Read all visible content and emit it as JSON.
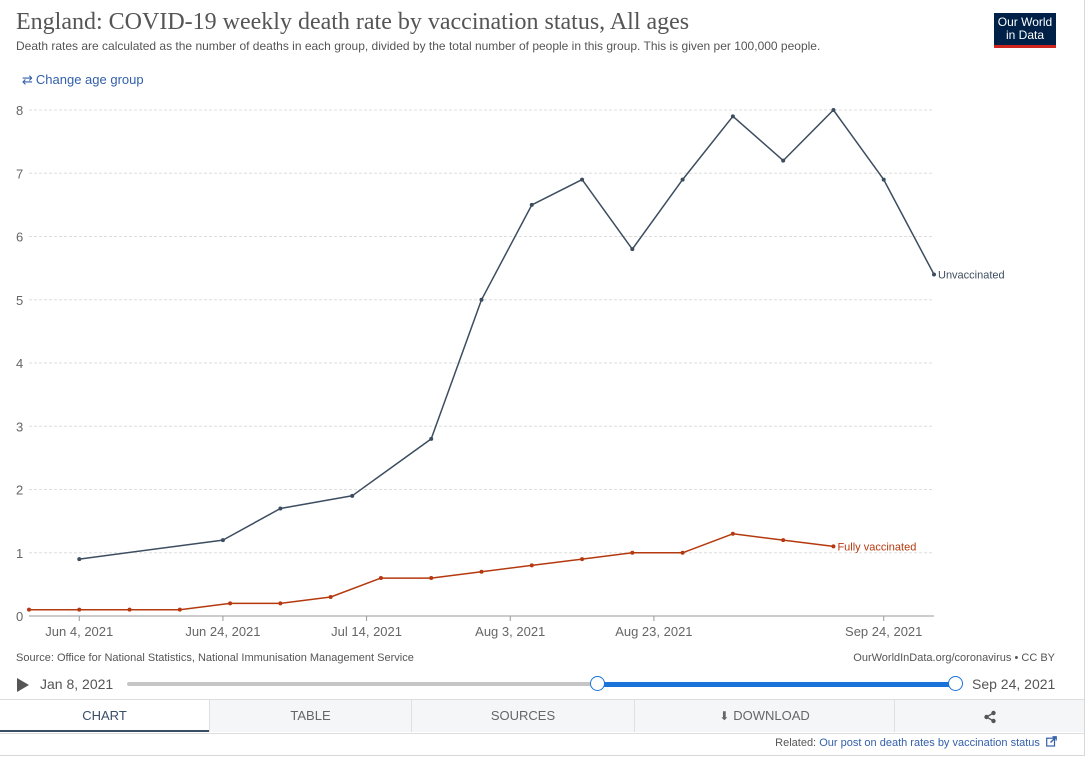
{
  "header": {
    "title": "England: COVID-19 weekly death rate by vaccination status, All ages",
    "subtitle": "Death rates are calculated as the number of deaths in each group, divided by the total number of people in this group. This is given per 100,000 people.",
    "logo_line1": "Our World",
    "logo_line2": "in Data",
    "change_age_label": "Change age group"
  },
  "colors": {
    "unvaccinated": "#3d4d60",
    "fully_vaccinated": "#b5390f",
    "accent": "#1a73d9",
    "logo_bg": "#002147",
    "logo_bar": "#ce261e"
  },
  "chart_data": {
    "type": "line",
    "title": "England: COVID-19 weekly death rate by vaccination status, All ages",
    "xlabel": "",
    "ylabel": "",
    "ylim": [
      0,
      8
    ],
    "yticks": [
      "0",
      "1",
      "2",
      "3",
      "4",
      "5",
      "6",
      "7",
      "8"
    ],
    "xlim": [
      "2021-05-31",
      "2021-09-24"
    ],
    "xticks": [
      {
        "date": "2021-06-04",
        "label": "Jun 4, 2021"
      },
      {
        "date": "2021-06-24",
        "label": "Jun 24, 2021"
      },
      {
        "date": "2021-07-14",
        "label": "Jul 14, 2021"
      },
      {
        "date": "2021-08-03",
        "label": "Aug 3, 2021"
      },
      {
        "date": "2021-08-23",
        "label": "Aug 23, 2021"
      },
      {
        "date": "2021-09-24",
        "label": "Sep 24, 2021"
      }
    ],
    "grid": true,
    "legend": "line-end labels",
    "series": [
      {
        "name": "Unvaccinated",
        "color": "#3d4d60",
        "points": [
          [
            "2021-06-04",
            0.9
          ],
          [
            "2021-06-24",
            1.2
          ],
          [
            "2021-07-02",
            1.7
          ],
          [
            "2021-07-12",
            1.9
          ],
          [
            "2021-07-23",
            2.8
          ],
          [
            "2021-07-30",
            5.0
          ],
          [
            "2021-08-06",
            6.5
          ],
          [
            "2021-08-13",
            6.9
          ],
          [
            "2021-08-20",
            5.8
          ],
          [
            "2021-08-27",
            6.9
          ],
          [
            "2021-09-03",
            7.9
          ],
          [
            "2021-09-10",
            7.2
          ],
          [
            "2021-09-17",
            8.0
          ],
          [
            "2021-09-24",
            6.9
          ],
          [
            "2021-10-01",
            5.4
          ]
        ]
      },
      {
        "name": "Fully vaccinated",
        "color": "#b5390f",
        "points": [
          [
            "2021-05-28",
            0.1
          ],
          [
            "2021-06-04",
            0.1
          ],
          [
            "2021-06-11",
            0.1
          ],
          [
            "2021-06-18",
            0.1
          ],
          [
            "2021-06-25",
            0.2
          ],
          [
            "2021-07-02",
            0.2
          ],
          [
            "2021-07-09",
            0.3
          ],
          [
            "2021-07-16",
            0.6
          ],
          [
            "2021-07-23",
            0.6
          ],
          [
            "2021-07-30",
            0.7
          ],
          [
            "2021-08-06",
            0.8
          ],
          [
            "2021-08-13",
            0.9
          ],
          [
            "2021-08-20",
            1.0
          ],
          [
            "2021-08-27",
            1.0
          ],
          [
            "2021-09-03",
            1.3
          ],
          [
            "2021-09-10",
            1.2
          ],
          [
            "2021-09-17",
            1.1
          ]
        ]
      }
    ]
  },
  "footer": {
    "source": "Source: Office for National Statistics, National Immunisation Management Service",
    "credit": "OurWorldInData.org/coronavirus • CC BY",
    "timeline_start": "Jan 8, 2021",
    "timeline_end": "Sep 24, 2021",
    "timeline_range_fraction": [
      0.568,
      1.0
    ]
  },
  "tabs": [
    {
      "label": "CHART",
      "active": true
    },
    {
      "label": "TABLE",
      "active": false
    },
    {
      "label": "SOURCES",
      "active": false
    },
    {
      "label": "DOWNLOAD",
      "active": false,
      "icon": "download-icon"
    },
    {
      "label": "",
      "active": false,
      "icon": "share-icon"
    }
  ],
  "related": {
    "prefix": "Related:",
    "link_text": "Our post on death rates by vaccination status",
    "icon": "external-link-icon"
  }
}
